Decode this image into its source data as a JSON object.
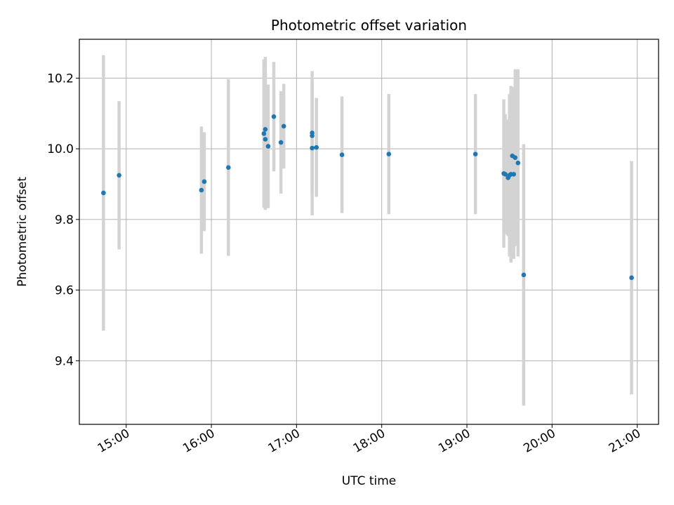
{
  "chart_data": {
    "type": "scatter",
    "title": "Photometric offset variation",
    "xlabel": "UTC time",
    "ylabel": "Photometric offset",
    "xlim": [
      "14:27",
      "21:15"
    ],
    "ylim": [
      9.22,
      10.31
    ],
    "grid": true,
    "x_ticks": [
      "15:00",
      "16:00",
      "17:00",
      "18:00",
      "19:00",
      "20:00",
      "21:00"
    ],
    "y_ticks": [
      "9.4",
      "9.6",
      "9.8",
      "10.0",
      "10.2"
    ],
    "colors": {
      "point": "#1f77b4",
      "errorbar": "#d3d3d3",
      "grid": "#b0b0b0"
    },
    "series": [
      {
        "points": [
          {
            "x": "14:44",
            "y": 9.875,
            "err": 0.39
          },
          {
            "x": "14:55",
            "y": 9.925,
            "err": 0.21
          },
          {
            "x": "15:53",
            "y": 9.883,
            "err": 0.18
          },
          {
            "x": "15:55",
            "y": 9.907,
            "err": 0.14
          },
          {
            "x": "16:12",
            "y": 9.947,
            "err": 0.25
          },
          {
            "x": "16:37",
            "y": 10.043,
            "err": 0.21
          },
          {
            "x": "16:38",
            "y": 10.055,
            "err": 0.205
          },
          {
            "x": "16:38",
            "y": 10.027,
            "err": 0.2
          },
          {
            "x": "16:40",
            "y": 10.007,
            "err": 0.175
          },
          {
            "x": "16:44",
            "y": 10.091,
            "err": 0.155
          },
          {
            "x": "16:49",
            "y": 10.018,
            "err": 0.145
          },
          {
            "x": "16:51",
            "y": 10.064,
            "err": 0.12
          },
          {
            "x": "17:11",
            "y": 10.045,
            "err": 0.175
          },
          {
            "x": "17:11",
            "y": 10.037,
            "err": 0.15
          },
          {
            "x": "17:11",
            "y": 10.002,
            "err": 0.19
          },
          {
            "x": "17:14",
            "y": 10.004,
            "err": 0.14
          },
          {
            "x": "17:32",
            "y": 9.983,
            "err": 0.165
          },
          {
            "x": "18:05",
            "y": 9.985,
            "err": 0.17
          },
          {
            "x": "19:06",
            "y": 9.985,
            "err": 0.17
          },
          {
            "x": "19:26",
            "y": 9.93,
            "err": 0.21
          },
          {
            "x": "19:27",
            "y": 9.928,
            "err": 0.17
          },
          {
            "x": "19:29",
            "y": 9.918,
            "err": 0.165
          },
          {
            "x": "19:30",
            "y": 9.925,
            "err": 0.23
          },
          {
            "x": "19:31",
            "y": 9.928,
            "err": 0.25
          },
          {
            "x": "19:32",
            "y": 9.98,
            "err": 0.195
          },
          {
            "x": "19:33",
            "y": 9.928,
            "err": 0.24
          },
          {
            "x": "19:34",
            "y": 9.975,
            "err": 0.25
          },
          {
            "x": "19:36",
            "y": 9.96,
            "err": 0.265
          },
          {
            "x": "19:40",
            "y": 9.643,
            "err": 0.37
          },
          {
            "x": "20:56",
            "y": 9.635,
            "err": 0.33
          }
        ]
      }
    ]
  }
}
